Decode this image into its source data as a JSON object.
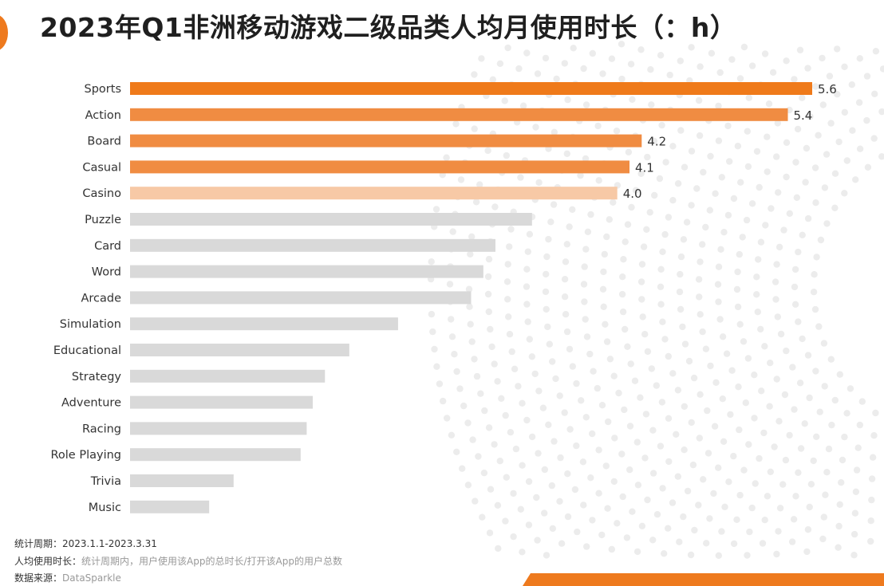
{
  "title": "2023年Q1非洲移动游戏二级品类人均月使用时长（：h）",
  "colors": {
    "top": "#ef7a1a",
    "high": "#f08c42",
    "mid": "#f7c9a6",
    "rest": "#d9d9d9",
    "dots": "#ececec",
    "accent": "#ee7a1e"
  },
  "chart_data": {
    "type": "bar",
    "orientation": "horizontal",
    "title": "2023年Q1非洲移动游戏二级品类人均月使用时长（：h）",
    "categories": [
      "Sports",
      "Action",
      "Board",
      "Casual",
      "Casino",
      "Puzzle",
      "Card",
      "Word",
      "Arcade",
      "Simulation",
      "Educational",
      "Strategy",
      "Adventure",
      "Racing",
      "Role Playing",
      "Trivia",
      "Music"
    ],
    "values": [
      5.6,
      5.4,
      4.2,
      4.1,
      4.0,
      3.3,
      3.0,
      2.9,
      2.8,
      2.2,
      1.8,
      1.6,
      1.5,
      1.45,
      1.4,
      0.85,
      0.65
    ],
    "value_labels": [
      "5.6",
      "5.4",
      "4.2",
      "4.1",
      "4.0",
      "",
      "",
      "",
      "",
      "",
      "",
      "",
      "",
      "",
      "",
      "",
      ""
    ],
    "xlim": [
      0,
      5.6
    ],
    "grid": false,
    "legend": "none"
  },
  "footer": {
    "period_label": "统计周期：",
    "period_value": "2023.1.1-2023.3.31",
    "definition_label": "人均使用时长：",
    "definition_value": "统计周期内，用户使用该App的总时长/打开该App的用户总数",
    "source_label": "数据来源：",
    "source_value": "DataSparkle"
  }
}
